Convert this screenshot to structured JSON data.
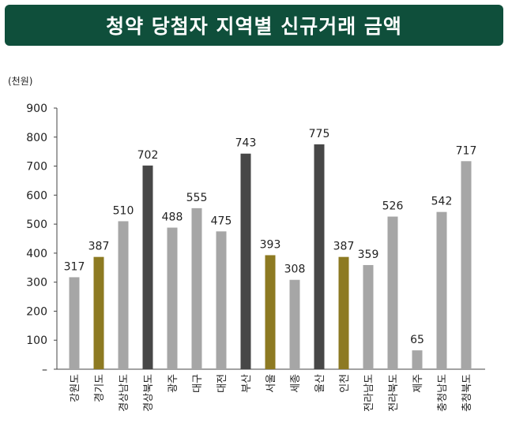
{
  "title": "청약 당첨자 지역별 신규거래 금액",
  "chart_data": {
    "type": "bar",
    "unit_label": "(천원)",
    "categories": [
      "강원도",
      "경기도",
      "경상남도",
      "경상북도",
      "광주",
      "대구",
      "대전",
      "부산",
      "서울",
      "세종",
      "울산",
      "인천",
      "전라남도",
      "전라북도",
      "제주",
      "충청남도",
      "충청북도"
    ],
    "values": [
      317,
      387,
      510,
      702,
      488,
      555,
      475,
      743,
      393,
      308,
      775,
      387,
      359,
      526,
      65,
      542,
      717
    ],
    "bar_colors": [
      "#a6a6a6",
      "#8d7a22",
      "#a6a6a6",
      "#474747",
      "#a6a6a6",
      "#a6a6a6",
      "#a6a6a6",
      "#474747",
      "#8d7a22",
      "#a6a6a6",
      "#474747",
      "#8d7a22",
      "#a6a6a6",
      "#a6a6a6",
      "#a6a6a6",
      "#a6a6a6",
      "#a6a6a6"
    ],
    "ylim": [
      0,
      900
    ],
    "yticks": [
      900,
      800,
      700,
      600,
      500,
      400,
      300,
      200,
      100
    ],
    "zero_tick_label": "–",
    "grid": false
  }
}
